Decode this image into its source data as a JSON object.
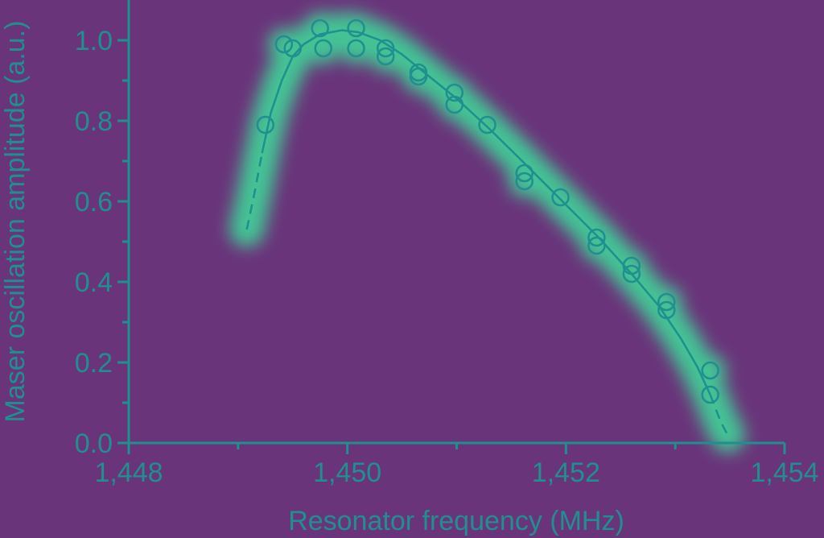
{
  "chart_data": {
    "type": "scatter",
    "xlabel": "Resonator frequency (MHz)",
    "ylabel": "Maser oscillation amplitude (a.u.)",
    "xlim": [
      1448,
      1454
    ],
    "ylim": [
      0,
      1.1
    ],
    "x_ticks": [
      {
        "value": 1448,
        "label": "1,448"
      },
      {
        "value": 1450,
        "label": "1,450"
      },
      {
        "value": 1452,
        "label": "1,452"
      },
      {
        "value": 1454,
        "label": "1,454"
      }
    ],
    "y_ticks": [
      {
        "value": 0.0,
        "label": "0.0"
      },
      {
        "value": 0.2,
        "label": "0.2"
      },
      {
        "value": 0.4,
        "label": "0.4"
      },
      {
        "value": 0.6,
        "label": "0.6"
      },
      {
        "value": 0.8,
        "label": "0.8"
      },
      {
        "value": 1.0,
        "label": "1.0"
      }
    ],
    "points": [
      {
        "x": 1449.25,
        "y": 0.79
      },
      {
        "x": 1449.42,
        "y": 0.99
      },
      {
        "x": 1449.5,
        "y": 0.98
      },
      {
        "x": 1449.75,
        "y": 1.03
      },
      {
        "x": 1449.78,
        "y": 0.98
      },
      {
        "x": 1450.08,
        "y": 1.03
      },
      {
        "x": 1450.08,
        "y": 0.98
      },
      {
        "x": 1450.35,
        "y": 0.98
      },
      {
        "x": 1450.35,
        "y": 0.96
      },
      {
        "x": 1450.65,
        "y": 0.92
      },
      {
        "x": 1450.65,
        "y": 0.91
      },
      {
        "x": 1450.98,
        "y": 0.87
      },
      {
        "x": 1450.98,
        "y": 0.84
      },
      {
        "x": 1451.28,
        "y": 0.79
      },
      {
        "x": 1451.62,
        "y": 0.67
      },
      {
        "x": 1451.62,
        "y": 0.65
      },
      {
        "x": 1451.95,
        "y": 0.61
      },
      {
        "x": 1452.28,
        "y": 0.51
      },
      {
        "x": 1452.28,
        "y": 0.49
      },
      {
        "x": 1452.6,
        "y": 0.44
      },
      {
        "x": 1452.6,
        "y": 0.42
      },
      {
        "x": 1452.92,
        "y": 0.35
      },
      {
        "x": 1452.92,
        "y": 0.33
      },
      {
        "x": 1453.32,
        "y": 0.18
      },
      {
        "x": 1453.32,
        "y": 0.12
      }
    ],
    "fit_curve": [
      {
        "x": 1449.08,
        "y": 0.53
      },
      {
        "x": 1449.15,
        "y": 0.62
      },
      {
        "x": 1449.22,
        "y": 0.72
      },
      {
        "x": 1449.3,
        "y": 0.82
      },
      {
        "x": 1449.4,
        "y": 0.9
      },
      {
        "x": 1449.5,
        "y": 0.96
      },
      {
        "x": 1449.6,
        "y": 0.99
      },
      {
        "x": 1449.75,
        "y": 1.015
      },
      {
        "x": 1449.95,
        "y": 1.025
      },
      {
        "x": 1450.1,
        "y": 1.02
      },
      {
        "x": 1450.3,
        "y": 1.0
      },
      {
        "x": 1450.5,
        "y": 0.965
      },
      {
        "x": 1450.75,
        "y": 0.91
      },
      {
        "x": 1451.0,
        "y": 0.855
      },
      {
        "x": 1451.3,
        "y": 0.78
      },
      {
        "x": 1451.6,
        "y": 0.7
      },
      {
        "x": 1451.95,
        "y": 0.605
      },
      {
        "x": 1452.3,
        "y": 0.51
      },
      {
        "x": 1452.6,
        "y": 0.42
      },
      {
        "x": 1452.85,
        "y": 0.34
      },
      {
        "x": 1453.05,
        "y": 0.26
      },
      {
        "x": 1453.2,
        "y": 0.19
      },
      {
        "x": 1453.32,
        "y": 0.12
      },
      {
        "x": 1453.42,
        "y": 0.05
      },
      {
        "x": 1453.48,
        "y": 0.02
      }
    ],
    "fit_dashed_below": 1449.22,
    "fit_dashed_above": 1453.32,
    "grid": false,
    "colors": {
      "background": "#6a347a",
      "foreground": "#1f8f8f",
      "highlight": "#3ddc9a"
    }
  }
}
